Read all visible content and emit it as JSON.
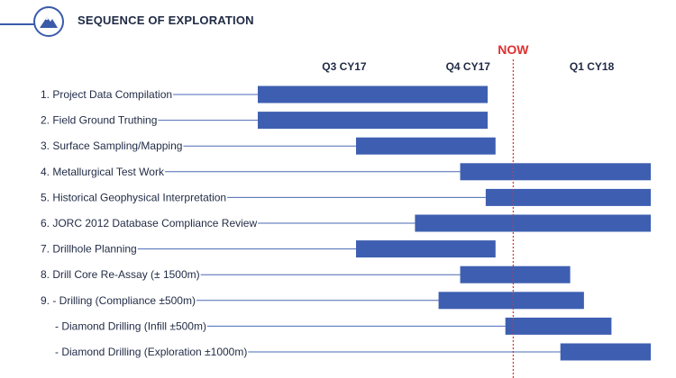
{
  "header": {
    "title": "SEQUENCE OF EXPLORATION",
    "logo_icon": "mountain-logo-icon",
    "accent_color": "#3a5ba9"
  },
  "chart_data": {
    "type": "gantt",
    "x_range": [
      0,
      100
    ],
    "period_ticks": [
      {
        "label": "Q3 CY17",
        "x": 22
      },
      {
        "label": "Q4 CY17",
        "x": 53.5
      },
      {
        "label": "Q1 CY18",
        "x": 85
      }
    ],
    "now_marker": {
      "label": "NOW",
      "x": 65
    },
    "bar_color": "#3e5fb1",
    "now_color": "#e03030",
    "tasks": [
      {
        "label": "1. Project Data Compilation",
        "start": 0,
        "end": 58.5
      },
      {
        "label": "2. Field Ground Truthing",
        "start": 0,
        "end": 58.5
      },
      {
        "label": "3. Surface Sampling/Mapping",
        "start": 25,
        "end": 60.5
      },
      {
        "label": "4. Metallurgical Test Work",
        "start": 51.5,
        "end": 100
      },
      {
        "label": "5. Historical Geophysical Interpretation",
        "start": 58,
        "end": 100
      },
      {
        "label": "6. JORC 2012 Database Compliance Review",
        "start": 40,
        "end": 100
      },
      {
        "label": "7. Drillhole Planning",
        "start": 25,
        "end": 60.5
      },
      {
        "label": "8. Drill Core Re-Assay (± 1500m)",
        "start": 51.5,
        "end": 79.5
      },
      {
        "label": "9.  - Drilling (Compliance ±500m)",
        "start": 46,
        "end": 83
      },
      {
        "label": "- Diamond Drilling (Infill ±500m)",
        "start": 63,
        "end": 90
      },
      {
        "label": "- Diamond Drilling (Exploration ±1000m)",
        "start": 77,
        "end": 100
      }
    ]
  }
}
